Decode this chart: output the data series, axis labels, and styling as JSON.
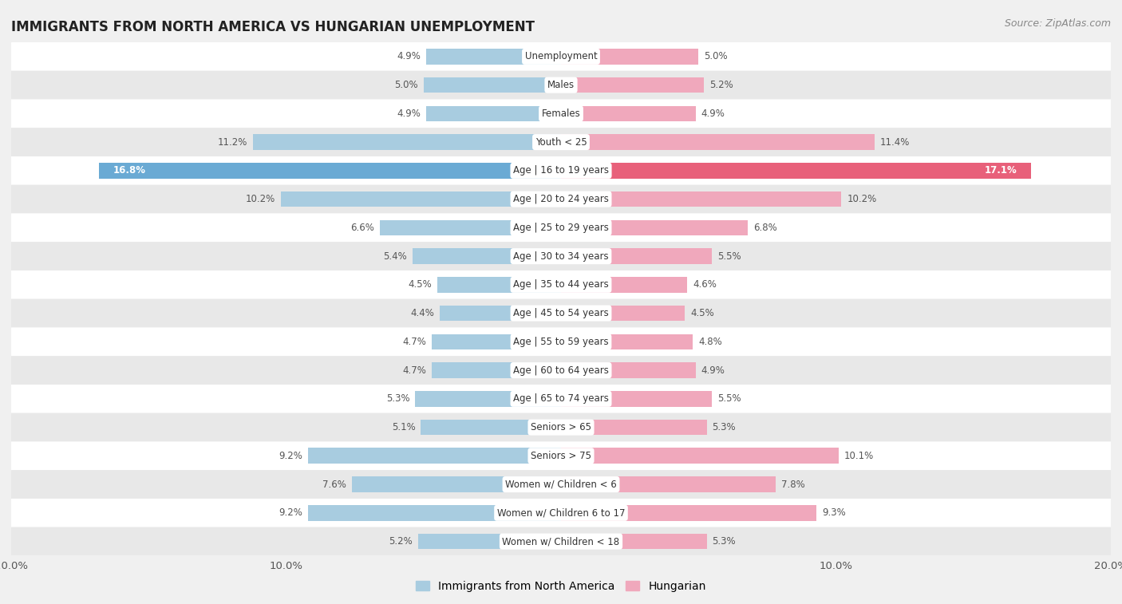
{
  "title": "IMMIGRANTS FROM NORTH AMERICA VS HUNGARIAN UNEMPLOYMENT",
  "source": "Source: ZipAtlas.com",
  "categories": [
    "Unemployment",
    "Males",
    "Females",
    "Youth < 25",
    "Age | 16 to 19 years",
    "Age | 20 to 24 years",
    "Age | 25 to 29 years",
    "Age | 30 to 34 years",
    "Age | 35 to 44 years",
    "Age | 45 to 54 years",
    "Age | 55 to 59 years",
    "Age | 60 to 64 years",
    "Age | 65 to 74 years",
    "Seniors > 65",
    "Seniors > 75",
    "Women w/ Children < 6",
    "Women w/ Children 6 to 17",
    "Women w/ Children < 18"
  ],
  "left_values": [
    4.9,
    5.0,
    4.9,
    11.2,
    16.8,
    10.2,
    6.6,
    5.4,
    4.5,
    4.4,
    4.7,
    4.7,
    5.3,
    5.1,
    9.2,
    7.6,
    9.2,
    5.2
  ],
  "right_values": [
    5.0,
    5.2,
    4.9,
    11.4,
    17.1,
    10.2,
    6.8,
    5.5,
    4.6,
    4.5,
    4.8,
    4.9,
    5.5,
    5.3,
    10.1,
    7.8,
    9.3,
    5.3
  ],
  "left_color": "#a8cce0",
  "right_color": "#f0a8bc",
  "highlight_left_color": "#6aaad4",
  "highlight_right_color": "#e8607a",
  "bg_color": "#f0f0f0",
  "row_color_odd": "#ffffff",
  "row_color_even": "#e8e8e8",
  "x_max": 20.0,
  "legend_left": "Immigrants from North America",
  "legend_right": "Hungarian",
  "bar_height": 0.55,
  "label_fontsize": 8.5,
  "title_fontsize": 12,
  "source_fontsize": 9
}
